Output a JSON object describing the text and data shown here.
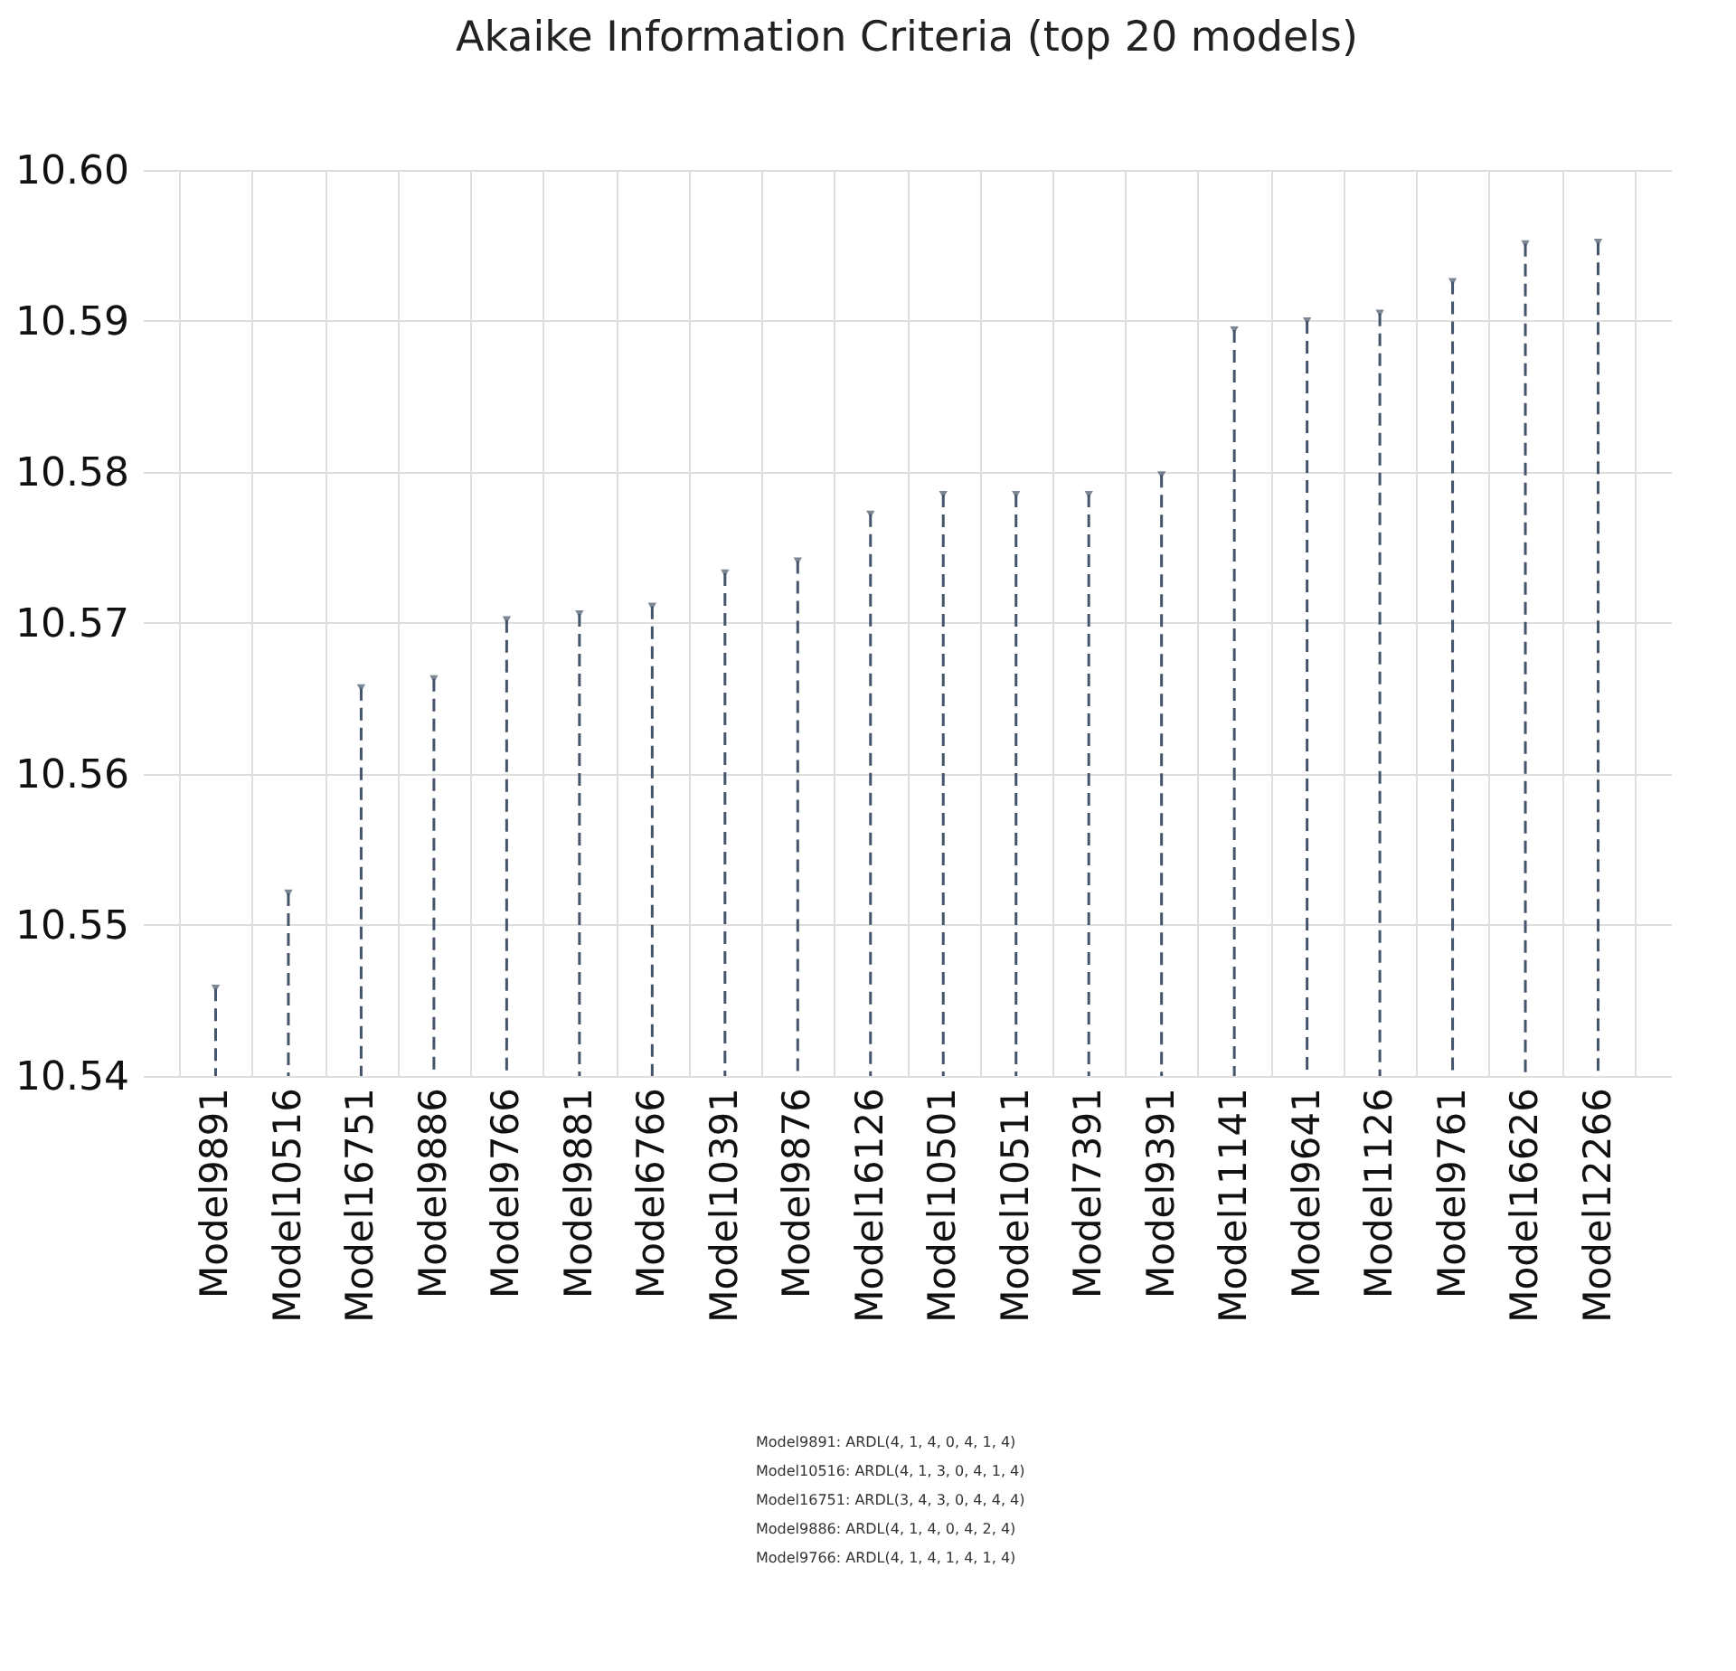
{
  "chart_data": {
    "type": "lollipop",
    "title": "Akaike Information Criteria (top 20 models)",
    "categories": [
      "Model9891",
      "Model10516",
      "Model16751",
      "Model9886",
      "Model9766",
      "Model9881",
      "Model6766",
      "Model10391",
      "Model9876",
      "Model16126",
      "Model10501",
      "Model10511",
      "Model7391",
      "Model9391",
      "Model11141",
      "Model9641",
      "Model1126",
      "Model9761",
      "Model16626",
      "Model12266"
    ],
    "values": [
      10.5458,
      10.5521,
      10.5657,
      10.5663,
      10.5702,
      10.5706,
      10.5711,
      10.5733,
      10.5741,
      10.5772,
      10.5785,
      10.5785,
      10.5785,
      10.5798,
      10.5894,
      10.59,
      10.5905,
      10.5926,
      10.5951,
      10.5952
    ],
    "color": "#44546a",
    "ylim": [
      10.54,
      10.6
    ],
    "yticks": [
      {
        "value": 10.54,
        "label": "10.54"
      },
      {
        "value": 10.55,
        "label": "10.55"
      },
      {
        "value": 10.56,
        "label": "10.56"
      },
      {
        "value": 10.57,
        "label": "10.57"
      },
      {
        "value": 10.58,
        "label": "10.58"
      },
      {
        "value": 10.59,
        "label": "10.59"
      },
      {
        "value": 10.6,
        "label": "10.60"
      }
    ],
    "grid": true,
    "marker": "triangle",
    "line_style": "dashed",
    "annotations": [
      "Model9891: ARDL(4, 1, 4, 0, 4, 1, 4)",
      "Model10516: ARDL(4, 1, 3, 0, 4, 1, 4)",
      "Model16751: ARDL(3, 4, 3, 0, 4, 4, 4)",
      "Model9886: ARDL(4, 1, 4, 0, 4, 2, 4)",
      "Model9766: ARDL(4, 1, 4, 1, 4, 1, 4)"
    ]
  }
}
